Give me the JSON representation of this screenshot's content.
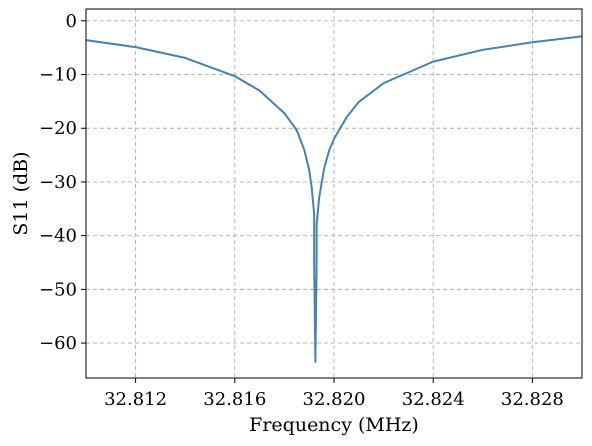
{
  "chart_data": {
    "type": "line",
    "title": "",
    "xlabel": "Frequency (MHz)",
    "ylabel": "S11 (dB)",
    "xlim": [
      32.81,
      32.83
    ],
    "ylim": [
      -66.5,
      2.2
    ],
    "xticks": [
      32.812,
      32.816,
      32.82,
      32.824,
      32.828
    ],
    "xtick_labels": [
      "32.812",
      "32.816",
      "32.820",
      "32.824",
      "32.828"
    ],
    "yticks": [
      0,
      -10,
      -20,
      -30,
      -40,
      -50,
      -60
    ],
    "ytick_labels": [
      "0",
      "−10",
      "−20",
      "−30",
      "−40",
      "−50",
      "−60"
    ],
    "grid": true,
    "legend": false,
    "series": [
      {
        "color": "#4682b4",
        "points": [
          [
            32.81,
            -3.6
          ],
          [
            32.812,
            -4.9
          ],
          [
            32.814,
            -6.9
          ],
          [
            32.816,
            -10.3
          ],
          [
            32.817,
            -13.0
          ],
          [
            32.818,
            -17.2
          ],
          [
            32.8185,
            -20.4
          ],
          [
            32.8188,
            -24.0
          ],
          [
            32.819,
            -27.8
          ],
          [
            32.8191,
            -31.0
          ],
          [
            32.8192,
            -36.0
          ],
          [
            32.8192,
            -45.0
          ],
          [
            32.81925,
            -63.5
          ],
          [
            32.8193,
            -45.0
          ],
          [
            32.8193,
            -38.0
          ],
          [
            32.8194,
            -33.0
          ],
          [
            32.8196,
            -27.5
          ],
          [
            32.8198,
            -24.2
          ],
          [
            32.82,
            -22.0
          ],
          [
            32.8205,
            -18.0
          ],
          [
            32.821,
            -15.1
          ],
          [
            32.822,
            -11.6
          ],
          [
            32.824,
            -7.6
          ],
          [
            32.826,
            -5.4
          ],
          [
            32.828,
            -4.0
          ],
          [
            32.83,
            -2.9
          ]
        ]
      }
    ]
  }
}
